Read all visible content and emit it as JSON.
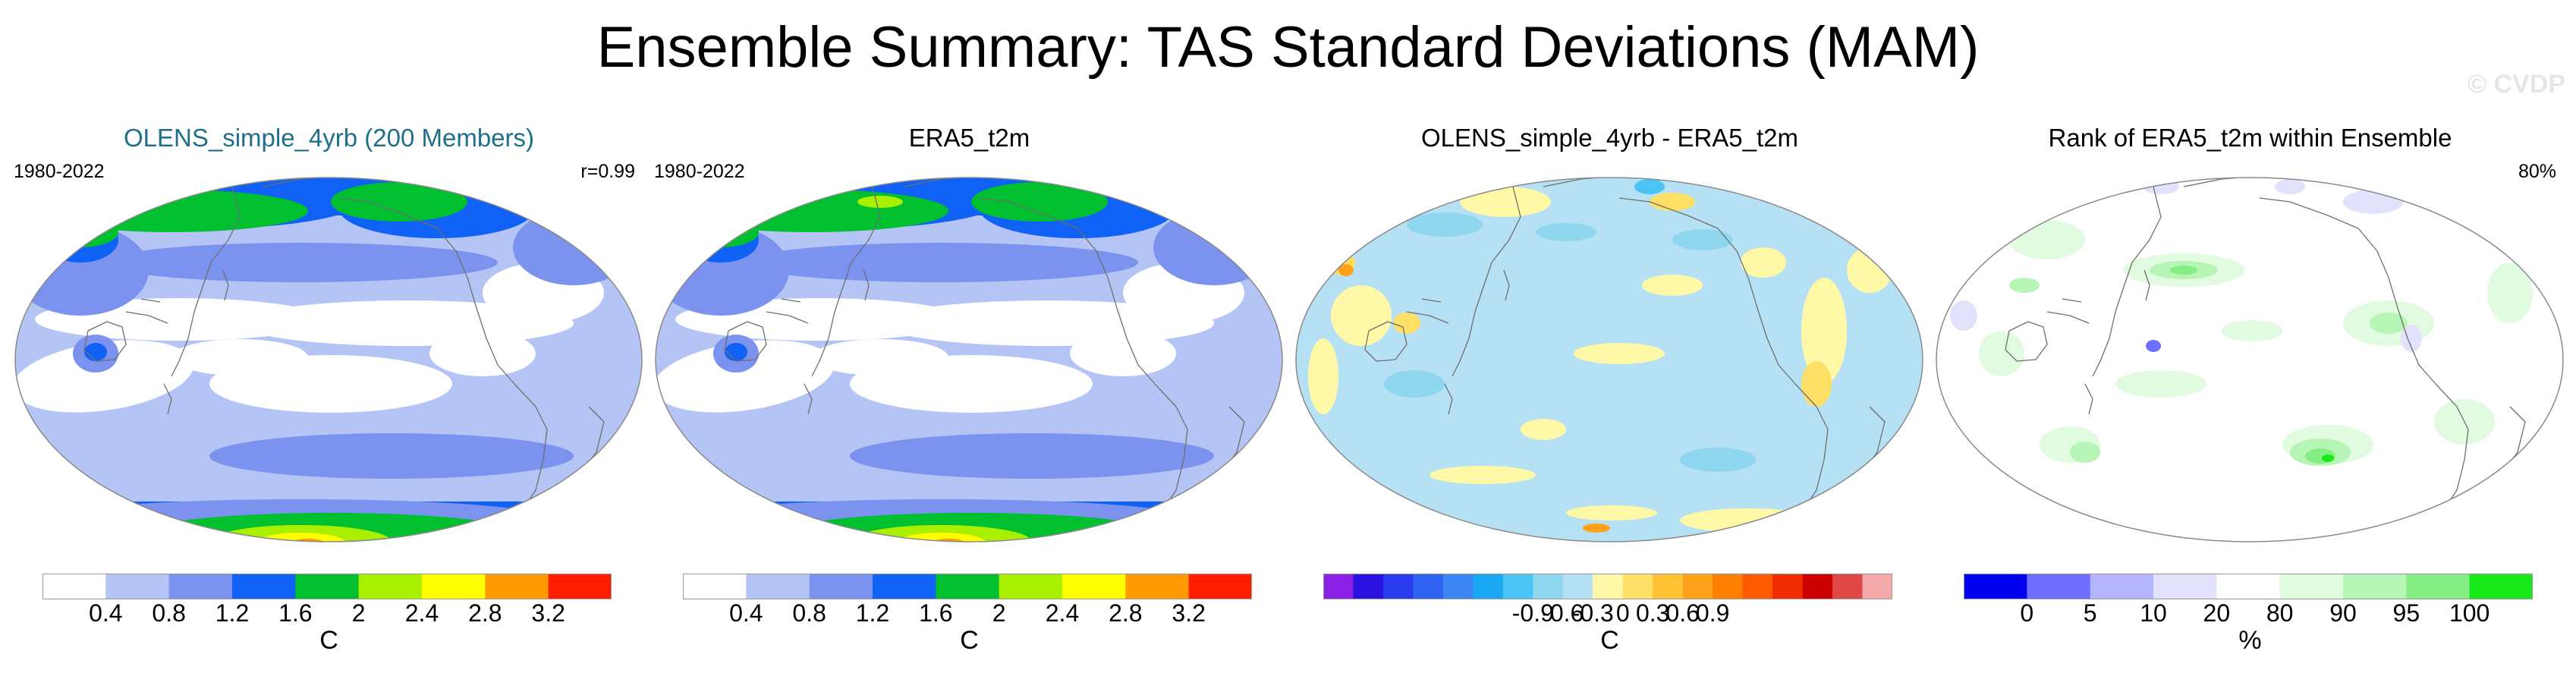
{
  "title": "Ensemble Summary: TAS Standard Deviations (MAM)",
  "watermark": "© CVDP",
  "colors": {
    "title_teal": "#1f6f8b",
    "coast": "#6e6e6e",
    "map_border": "#8a8a8a"
  },
  "panels": [
    {
      "title": "OLENS_simple_4yrb (200 Members)",
      "years": "1980-2022",
      "right_label": "r=0.99",
      "map_kind": "std_model",
      "unit": "C",
      "colorbar": {
        "colors": [
          "#ffffff",
          "#b4c4f5",
          "#7b92ef",
          "#0f62f5",
          "#00c030",
          "#a8f000",
          "#ffff00",
          "#ff9a00",
          "#ff1f00"
        ],
        "tick_labels": [
          "0.4",
          "0.8",
          "1.2",
          "1.6",
          "2",
          "2.4",
          "2.8",
          "3.2"
        ]
      }
    },
    {
      "title": "ERA5_t2m",
      "years": "1980-2022",
      "right_label": "",
      "map_kind": "std_obs",
      "unit": "C",
      "colorbar": {
        "colors": [
          "#ffffff",
          "#b4c4f5",
          "#7b92ef",
          "#0f62f5",
          "#00c030",
          "#a8f000",
          "#ffff00",
          "#ff9a00",
          "#ff1f00"
        ],
        "tick_labels": [
          "0.4",
          "0.8",
          "1.2",
          "1.6",
          "2",
          "2.4",
          "2.8",
          "3.2"
        ]
      }
    },
    {
      "title": "OLENS_simple_4yrb - ERA5_t2m",
      "years": "",
      "right_label": "",
      "map_kind": "diff",
      "unit": "C",
      "colorbar": {
        "colors": [
          "#8a1fe6",
          "#2b12e0",
          "#2a3bee",
          "#2f62f0",
          "#3c86f4",
          "#1aa8f2",
          "#49c4f5",
          "#8fd7ef",
          "#b6e1f5",
          "#fff8a6",
          "#ffe066",
          "#ffc233",
          "#ffa21a",
          "#ff7f00",
          "#ff5a00",
          "#f02c00",
          "#cc0000",
          "#e04848",
          "#f4a8a8"
        ],
        "tick_labels": [
          "-0.9",
          "-0.6",
          "-0.3",
          "0",
          "0.3",
          "0.6",
          "0.9"
        ]
      }
    },
    {
      "title": "Rank of ERA5_t2m within Ensemble",
      "years": "",
      "right_label": "80%",
      "map_kind": "rank",
      "unit": "%",
      "colorbar": {
        "colors": [
          "#0000ee",
          "#6e6eff",
          "#b4b4ff",
          "#e2e2fc",
          "#ffffff",
          "#e0fbe0",
          "#b6f5b6",
          "#84ee84",
          "#18e818"
        ],
        "tick_labels": [
          "0",
          "5",
          "10",
          "20",
          "80",
          "90",
          "95",
          "100"
        ]
      }
    }
  ]
}
